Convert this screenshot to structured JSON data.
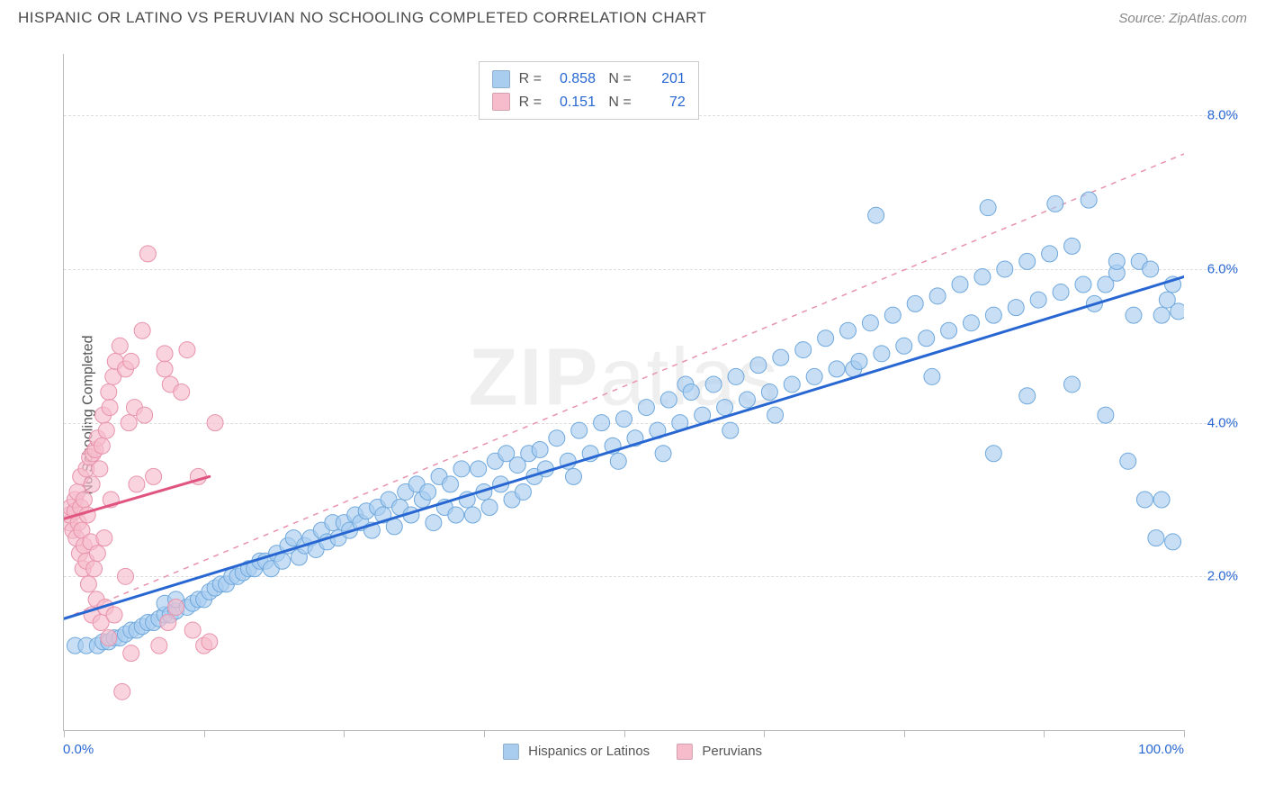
{
  "title": "HISPANIC OR LATINO VS PERUVIAN NO SCHOOLING COMPLETED CORRELATION CHART",
  "source_label": "Source:",
  "source_name": "ZipAtlas.com",
  "watermark_a": "ZIP",
  "watermark_b": "atlas",
  "chart": {
    "type": "scatter",
    "ylabel": "No Schooling Completed",
    "xlim": [
      0,
      100
    ],
    "ylim": [
      0,
      8.8
    ],
    "xticks": [
      0,
      12.5,
      25,
      37.5,
      50,
      62.5,
      75,
      87.5,
      100
    ],
    "xtick_labels_shown": {
      "min": "0.0%",
      "max": "100.0%"
    },
    "yticks": [
      2.0,
      4.0,
      6.0,
      8.0
    ],
    "ytick_labels": [
      "2.0%",
      "4.0%",
      "6.0%",
      "8.0%"
    ],
    "background_color": "#ffffff",
    "grid_color": "#dddddd",
    "axis_color": "#bbbbbb",
    "tick_label_color": "#2867d2",
    "series": [
      {
        "name": "Hispanics or Latinos",
        "color_fill": "#a9cdef",
        "color_stroke": "#6fa8dc",
        "marker_radius": 9,
        "fill_opacity": 0.65,
        "R": "0.858",
        "N": "201",
        "trend": {
          "x1": 0,
          "y1": 1.45,
          "x2": 100,
          "y2": 5.9,
          "dash_x1": 0,
          "dash_x2": 100,
          "dash_y1": 1.45,
          "dash_y2": 7.5,
          "stroke": "#2867d2",
          "width": 3
        },
        "points": [
          [
            1,
            1.1
          ],
          [
            2,
            1.1
          ],
          [
            3,
            1.1
          ],
          [
            3.5,
            1.15
          ],
          [
            4,
            1.15
          ],
          [
            4.5,
            1.2
          ],
          [
            5,
            1.2
          ],
          [
            5.5,
            1.25
          ],
          [
            6,
            1.3
          ],
          [
            6.5,
            1.3
          ],
          [
            7,
            1.35
          ],
          [
            7.5,
            1.4
          ],
          [
            8,
            1.4
          ],
          [
            8.5,
            1.45
          ],
          [
            9,
            1.5
          ],
          [
            9,
            1.65
          ],
          [
            9.5,
            1.5
          ],
          [
            10,
            1.55
          ],
          [
            10,
            1.7
          ],
          [
            11,
            1.6
          ],
          [
            11.5,
            1.65
          ],
          [
            12,
            1.7
          ],
          [
            12.5,
            1.7
          ],
          [
            13,
            1.8
          ],
          [
            13.5,
            1.85
          ],
          [
            14,
            1.9
          ],
          [
            14.5,
            1.9
          ],
          [
            15,
            2.0
          ],
          [
            15.5,
            2.0
          ],
          [
            16,
            2.05
          ],
          [
            16.5,
            2.1
          ],
          [
            17,
            2.1
          ],
          [
            17.5,
            2.2
          ],
          [
            18,
            2.2
          ],
          [
            18.5,
            2.1
          ],
          [
            19,
            2.3
          ],
          [
            19.5,
            2.2
          ],
          [
            20,
            2.4
          ],
          [
            20.5,
            2.5
          ],
          [
            21,
            2.25
          ],
          [
            21.5,
            2.4
          ],
          [
            22,
            2.5
          ],
          [
            22.5,
            2.35
          ],
          [
            23,
            2.6
          ],
          [
            23.5,
            2.45
          ],
          [
            24,
            2.7
          ],
          [
            24.5,
            2.5
          ],
          [
            25,
            2.7
          ],
          [
            25.5,
            2.6
          ],
          [
            26,
            2.8
          ],
          [
            26.5,
            2.7
          ],
          [
            27,
            2.85
          ],
          [
            27.5,
            2.6
          ],
          [
            28,
            2.9
          ],
          [
            28.5,
            2.8
          ],
          [
            29,
            3.0
          ],
          [
            29.5,
            2.65
          ],
          [
            30,
            2.9
          ],
          [
            30.5,
            3.1
          ],
          [
            31,
            2.8
          ],
          [
            31.5,
            3.2
          ],
          [
            32,
            3.0
          ],
          [
            32.5,
            3.1
          ],
          [
            33,
            2.7
          ],
          [
            33.5,
            3.3
          ],
          [
            34,
            2.9
          ],
          [
            34.5,
            3.2
          ],
          [
            35,
            2.8
          ],
          [
            35.5,
            3.4
          ],
          [
            36,
            3.0
          ],
          [
            36.5,
            2.8
          ],
          [
            37,
            3.4
          ],
          [
            37.5,
            3.1
          ],
          [
            38,
            2.9
          ],
          [
            38.5,
            3.5
          ],
          [
            39,
            3.2
          ],
          [
            39.5,
            3.6
          ],
          [
            40,
            3.0
          ],
          [
            40.5,
            3.45
          ],
          [
            41,
            3.1
          ],
          [
            41.5,
            3.6
          ],
          [
            42,
            3.3
          ],
          [
            42.5,
            3.65
          ],
          [
            43,
            3.4
          ],
          [
            44,
            3.8
          ],
          [
            45,
            3.5
          ],
          [
            45.5,
            3.3
          ],
          [
            46,
            3.9
          ],
          [
            47,
            3.6
          ],
          [
            48,
            4.0
          ],
          [
            49,
            3.7
          ],
          [
            49.5,
            3.5
          ],
          [
            50,
            4.05
          ],
          [
            51,
            3.8
          ],
          [
            52,
            4.2
          ],
          [
            53,
            3.9
          ],
          [
            53.5,
            3.6
          ],
          [
            54,
            4.3
          ],
          [
            55,
            4.0
          ],
          [
            55.5,
            4.5
          ],
          [
            56,
            4.4
          ],
          [
            57,
            4.1
          ],
          [
            58,
            4.5
          ],
          [
            59,
            4.2
          ],
          [
            59.5,
            3.9
          ],
          [
            60,
            4.6
          ],
          [
            61,
            4.3
          ],
          [
            62,
            4.75
          ],
          [
            63,
            4.4
          ],
          [
            63.5,
            4.1
          ],
          [
            64,
            4.85
          ],
          [
            65,
            4.5
          ],
          [
            66,
            4.95
          ],
          [
            67,
            4.6
          ],
          [
            68,
            5.1
          ],
          [
            69,
            4.7
          ],
          [
            70,
            5.2
          ],
          [
            70.5,
            4.7
          ],
          [
            71,
            4.8
          ],
          [
            72,
            5.3
          ],
          [
            72.5,
            6.7
          ],
          [
            73,
            4.9
          ],
          [
            74,
            5.4
          ],
          [
            75,
            5.0
          ],
          [
            76,
            5.55
          ],
          [
            77,
            5.1
          ],
          [
            77.5,
            4.6
          ],
          [
            78,
            5.65
          ],
          [
            79,
            5.2
          ],
          [
            80,
            5.8
          ],
          [
            81,
            5.3
          ],
          [
            82,
            5.9
          ],
          [
            82.5,
            6.8
          ],
          [
            83,
            5.4
          ],
          [
            83,
            3.6
          ],
          [
            84,
            6.0
          ],
          [
            85,
            5.5
          ],
          [
            86,
            6.1
          ],
          [
            86,
            4.35
          ],
          [
            87,
            5.6
          ],
          [
            88,
            6.2
          ],
          [
            88.5,
            6.85
          ],
          [
            89,
            5.7
          ],
          [
            90,
            6.3
          ],
          [
            90,
            4.5
          ],
          [
            91,
            5.8
          ],
          [
            91.5,
            6.9
          ],
          [
            92,
            5.55
          ],
          [
            93,
            5.8
          ],
          [
            93,
            4.1
          ],
          [
            94,
            5.95
          ],
          [
            94,
            6.1
          ],
          [
            95,
            3.5
          ],
          [
            95.5,
            5.4
          ],
          [
            96,
            6.1
          ],
          [
            96.5,
            3.0
          ],
          [
            97,
            6.0
          ],
          [
            97.5,
            2.5
          ],
          [
            98,
            5.4
          ],
          [
            98,
            3.0
          ],
          [
            98.5,
            5.6
          ],
          [
            99,
            2.45
          ],
          [
            99,
            5.8
          ],
          [
            99.5,
            5.45
          ]
        ]
      },
      {
        "name": "Peruvians",
        "color_fill": "#f6bccb",
        "color_stroke": "#e893ac",
        "marker_radius": 9,
        "fill_opacity": 0.65,
        "R": "0.151",
        "N": "72",
        "trend": {
          "x1": 0,
          "y1": 2.75,
          "x2": 13,
          "y2": 3.3,
          "stroke": "#e05580",
          "width": 3
        },
        "points": [
          [
            0.5,
            2.7
          ],
          [
            0.5,
            2.8
          ],
          [
            0.6,
            2.9
          ],
          [
            0.8,
            2.6
          ],
          [
            1,
            2.85
          ],
          [
            1,
            3.0
          ],
          [
            1.1,
            2.5
          ],
          [
            1.2,
            3.1
          ],
          [
            1.3,
            2.7
          ],
          [
            1.4,
            2.3
          ],
          [
            1.5,
            2.9
          ],
          [
            1.5,
            3.3
          ],
          [
            1.6,
            2.6
          ],
          [
            1.7,
            2.1
          ],
          [
            1.8,
            3.0
          ],
          [
            1.8,
            2.4
          ],
          [
            2,
            3.4
          ],
          [
            2,
            2.2
          ],
          [
            2.1,
            2.8
          ],
          [
            2.2,
            1.9
          ],
          [
            2.3,
            3.55
          ],
          [
            2.4,
            2.45
          ],
          [
            2.5,
            1.5
          ],
          [
            2.5,
            3.2
          ],
          [
            2.6,
            3.6
          ],
          [
            2.7,
            2.1
          ],
          [
            2.8,
            3.65
          ],
          [
            2.9,
            1.7
          ],
          [
            3,
            3.8
          ],
          [
            3,
            2.3
          ],
          [
            3.2,
            3.4
          ],
          [
            3.3,
            1.4
          ],
          [
            3.4,
            3.7
          ],
          [
            3.5,
            4.1
          ],
          [
            3.6,
            2.5
          ],
          [
            3.7,
            1.6
          ],
          [
            3.8,
            3.9
          ],
          [
            4,
            4.4
          ],
          [
            4,
            1.2
          ],
          [
            4.1,
            4.2
          ],
          [
            4.2,
            3.0
          ],
          [
            4.4,
            4.6
          ],
          [
            4.5,
            1.5
          ],
          [
            4.6,
            4.8
          ],
          [
            5,
            5.0
          ],
          [
            5.2,
            0.5
          ],
          [
            5.5,
            4.7
          ],
          [
            5.5,
            2.0
          ],
          [
            5.8,
            4.0
          ],
          [
            6,
            4.8
          ],
          [
            6,
            1.0
          ],
          [
            6.3,
            4.2
          ],
          [
            6.5,
            3.2
          ],
          [
            7,
            5.2
          ],
          [
            7.2,
            4.1
          ],
          [
            7.5,
            6.2
          ],
          [
            8,
            3.3
          ],
          [
            8.5,
            1.1
          ],
          [
            9,
            4.7
          ],
          [
            9,
            4.9
          ],
          [
            9.3,
            1.4
          ],
          [
            9.5,
            4.5
          ],
          [
            10,
            1.6
          ],
          [
            10.5,
            4.4
          ],
          [
            11,
            4.95
          ],
          [
            11.5,
            1.3
          ],
          [
            12,
            3.3
          ],
          [
            12.5,
            1.1
          ],
          [
            13,
            1.15
          ],
          [
            13.5,
            4.0
          ]
        ]
      }
    ],
    "legend": {
      "items": [
        {
          "label": "Hispanics or Latinos",
          "swatch": "#a9cdef"
        },
        {
          "label": "Peruvians",
          "swatch": "#f6bccb"
        }
      ]
    }
  }
}
